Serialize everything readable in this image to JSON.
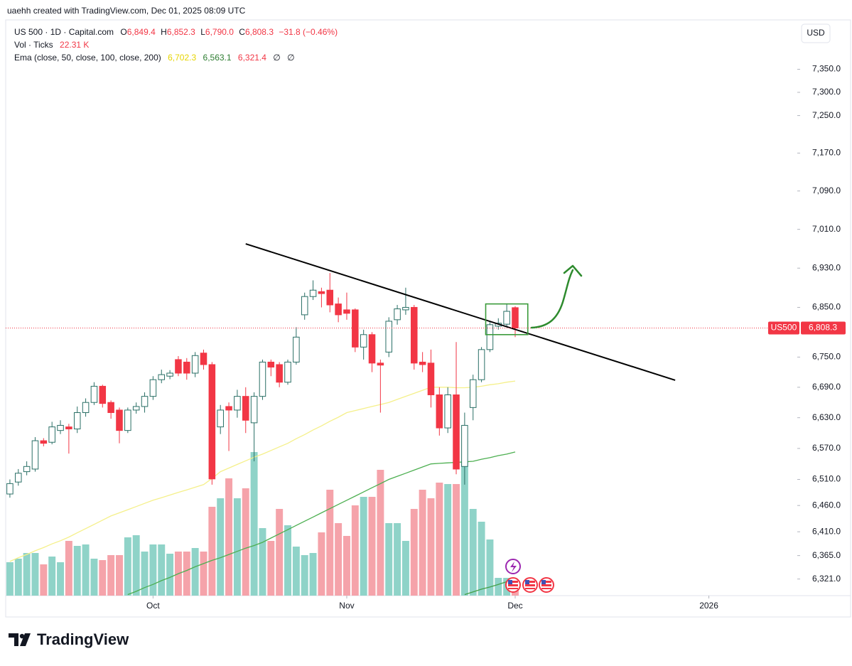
{
  "header": "uaehh created with TradingView.com, Dec 01, 2025 08:09 UTC",
  "footer": {
    "logo": "TradingView"
  },
  "currency": "USD",
  "legend": {
    "symbol": "US 500 · 1D · Capital.com",
    "open_label": "O",
    "open": "6,849.4",
    "high_label": "H",
    "high": "6,852.3",
    "low_label": "L",
    "low": "6,790.0",
    "close_label": "C",
    "close": "6,808.3",
    "change": "−31.8 (−0.46%)",
    "volume_name": "Vol · Ticks",
    "volume": "22.31 K",
    "ema_name": "Ema (close, 50, close, 100, close, 200)",
    "ema_values": [
      "6,702.3",
      "6,563.1",
      "6,321.4",
      "∅",
      "∅"
    ]
  },
  "chart_data": {
    "type": "candlestick",
    "log_scale": true,
    "grid": false,
    "xlim": [
      -0.5,
      93.5
    ],
    "xticks": [
      {
        "value": 17,
        "label": "Oct"
      },
      {
        "value": 40,
        "label": "Nov"
      },
      {
        "value": 60,
        "label": "Dec"
      },
      {
        "value": 83,
        "label": "2026"
      }
    ],
    "ylim": [
      6290,
      7455
    ],
    "yticks": [
      {
        "value": 7350,
        "label": "7,350.0"
      },
      {
        "value": 7300,
        "label": "7,300.0"
      },
      {
        "value": 7250,
        "label": "7,250.0"
      },
      {
        "value": 7170,
        "label": "7,170.0"
      },
      {
        "value": 7090,
        "label": "7,090.0"
      },
      {
        "value": 7010,
        "label": "7,010.0"
      },
      {
        "value": 6930,
        "label": "6,930.0"
      },
      {
        "value": 6850,
        "label": "6,850.0"
      },
      {
        "value": 6750,
        "label": "6,750.0"
      },
      {
        "value": 6690,
        "label": "6,690.0"
      },
      {
        "value": 6630,
        "label": "6,630.0"
      },
      {
        "value": 6570,
        "label": "6,570.0"
      },
      {
        "value": 6510,
        "label": "6,510.0"
      },
      {
        "value": 6460,
        "label": "6,460.0"
      },
      {
        "value": 6410,
        "label": "6,410.0"
      },
      {
        "value": 6365,
        "label": "6,365.0"
      },
      {
        "value": 6321,
        "label": "6,321.0"
      }
    ],
    "up_color": "#ffffff",
    "up_stroke": "#2a6f66",
    "down_color": "#f23645",
    "open": [
      6482,
      6505,
      6525,
      6530,
      6585,
      6582,
      6605,
      6612,
      6608,
      6640,
      6660,
      6692,
      6660,
      6645,
      6605,
      6645,
      6652,
      6672,
      6705,
      6712,
      6745,
      6740,
      6718,
      6758,
      6735,
      6612,
      6652,
      6645,
      6672,
      6620,
      6672,
      6740,
      6735,
      6700,
      6740,
      6835,
      6872,
      6882,
      6885,
      6857,
      6845,
      6845,
      6770,
      6795,
      6738,
      6760,
      6825,
      6845,
      6850,
      6740,
      6738,
      6675,
      6610,
      6675,
      6535,
      6650,
      6705,
      6765,
      6812,
      6816,
      6849.4
    ],
    "high": [
      6510,
      6530,
      6545,
      6592,
      6590,
      6622,
      6625,
      6618,
      6652,
      6668,
      6700,
      6695,
      6664,
      6650,
      6650,
      6660,
      6680,
      6712,
      6725,
      6724,
      6752,
      6748,
      6760,
      6765,
      6740,
      6655,
      6660,
      6685,
      6690,
      6680,
      6745,
      6745,
      6740,
      6745,
      6810,
      6880,
      6905,
      6890,
      6920,
      6870,
      6880,
      6848,
      6805,
      6800,
      6745,
      6830,
      6855,
      6890,
      6855,
      6760,
      6765,
      6690,
      6690,
      6780,
      6640,
      6715,
      6770,
      6820,
      6828,
      6858,
      6852.3
    ],
    "low": [
      6475,
      6498,
      6518,
      6525,
      6574,
      6578,
      6598,
      6560,
      6600,
      6632,
      6655,
      6650,
      6628,
      6580,
      6600,
      6638,
      6640,
      6665,
      6698,
      6706,
      6712,
      6705,
      6710,
      6725,
      6500,
      6598,
      6565,
      6630,
      6600,
      6545,
      6665,
      6712,
      6690,
      6695,
      6735,
      6825,
      6865,
      6850,
      6840,
      6820,
      6825,
      6760,
      6745,
      6720,
      6640,
      6750,
      6815,
      6835,
      6725,
      6720,
      6650,
      6595,
      6600,
      6520,
      6500,
      6625,
      6700,
      6760,
      6805,
      6810,
      6790.0
    ],
    "close": [
      6502,
      6522,
      6535,
      6585,
      6580,
      6612,
      6615,
      6608,
      6640,
      6660,
      6692,
      6658,
      6640,
      6605,
      6645,
      6652,
      6672,
      6705,
      6715,
      6718,
      6718,
      6718,
      6753,
      6735,
      6511,
      6645,
      6645,
      6672,
      6625,
      6672,
      6740,
      6730,
      6700,
      6740,
      6790,
      6872,
      6885,
      6878,
      6855,
      6835,
      6838,
      6770,
      6795,
      6738,
      6734,
      6822,
      6847,
      6850,
      6738,
      6735,
      6675,
      6610,
      6675,
      6530,
      6615,
      6705,
      6765,
      6815,
      6818,
      6842,
      6808.3
    ],
    "volume": {
      "name": "Vol · Ticks",
      "up_color": "#8fd3c8",
      "down_color": "#f5a3aa",
      "lim": [
        0,
        240
      ],
      "values": [
        47,
        52,
        60,
        60,
        44,
        55,
        47,
        77,
        70,
        72,
        52,
        50,
        57,
        57,
        82,
        85,
        62,
        72,
        72,
        59,
        62,
        62,
        67,
        62,
        125,
        137,
        165,
        137,
        151,
        202,
        95,
        77,
        122,
        99,
        69,
        57,
        60,
        89,
        149,
        102,
        84,
        127,
        139,
        139,
        177,
        102,
        102,
        77,
        122,
        149,
        137,
        159,
        157,
        157,
        189,
        122,
        104,
        79,
        25,
        25,
        22.31
      ]
    },
    "series": [
      {
        "name": "EMA 50",
        "color": "#f5f08a",
        "values": [
          6354,
          6361,
          6367,
          6374,
          6380,
          6387,
          6393,
          6400,
          6408,
          6416,
          6424,
          6432,
          6440,
          6446,
          6452,
          6458,
          6464,
          6470,
          6475,
          6480,
          6485,
          6490,
          6495,
          6500,
          6512,
          6525,
          6532,
          6539,
          6546,
          6553,
          6559,
          6566,
          6573,
          6580,
          6589,
          6597,
          6606,
          6614,
          6623,
          6631,
          6640,
          6644,
          6648,
          6652,
          6656,
          6660,
          6666,
          6672,
          6678,
          6684,
          6690,
          6690,
          6690,
          6689,
          6689,
          6690,
          6692,
          6695,
          6697,
          6700,
          6702.3
        ]
      },
      {
        "name": "EMA 100",
        "color": "#4caf50",
        "values": [
          null,
          null,
          null,
          null,
          null,
          null,
          null,
          null,
          null,
          null,
          null,
          null,
          null,
          null,
          6292,
          6298,
          6305,
          6311,
          6318,
          6324,
          6331,
          6337,
          6344,
          6350,
          6356,
          6361,
          6367,
          6373,
          6379,
          6384,
          6390,
          6398,
          6406,
          6414,
          6422,
          6430,
          6438,
          6446,
          6454,
          6462,
          6470,
          6478,
          6486,
          6494,
          6502,
          6510,
          6516,
          6522,
          6528,
          6534,
          6540,
          6541,
          6542,
          6543,
          6544,
          6545,
          6549,
          6552,
          6556,
          6559,
          6563.1
        ]
      },
      {
        "name": "EMA 200",
        "color": "#43a047",
        "values": [
          null,
          null,
          null,
          null,
          null,
          null,
          null,
          null,
          null,
          null,
          null,
          null,
          null,
          null,
          null,
          null,
          null,
          null,
          null,
          null,
          null,
          null,
          null,
          null,
          null,
          null,
          null,
          null,
          null,
          null,
          null,
          null,
          null,
          null,
          null,
          null,
          null,
          null,
          null,
          null,
          null,
          null,
          null,
          null,
          null,
          null,
          null,
          null,
          null,
          null,
          null,
          null,
          null,
          null,
          6292,
          6297,
          6302,
          6306,
          6311,
          6316,
          6321.4
        ]
      }
    ],
    "trendline": {
      "color": "#000000",
      "x": [
        28,
        79
      ],
      "y": [
        6980,
        6704
      ]
    },
    "box": {
      "color": "#3a9a3a",
      "x": [
        57,
        62
      ],
      "y": [
        6857,
        6795
      ]
    },
    "price_label": {
      "name": "US500",
      "value": "6,808.3",
      "color": "#f23645"
    }
  }
}
